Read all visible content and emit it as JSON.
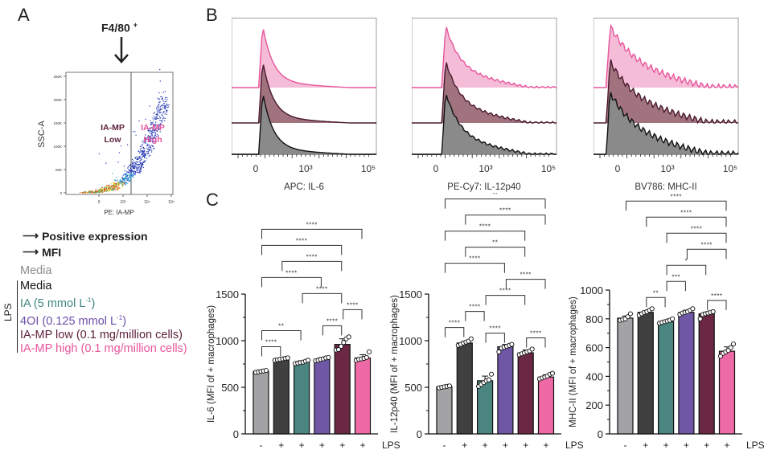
{
  "panels": {
    "a": "A",
    "b": "B",
    "c": "C"
  },
  "panel_a": {
    "gate_title": "F4/80",
    "gate_superscript": "+",
    "ylabel": "SSC-A",
    "xlabel": "PE: IA-MP",
    "yticks": [
      "0",
      "50K",
      "100K",
      "150K",
      "200K",
      "250K"
    ],
    "xticks": [
      "0",
      "10³",
      "10⁴",
      "10⁵"
    ],
    "gate_low": [
      "IA-MP",
      "Low"
    ],
    "gate_high": [
      "IA-MP",
      "High"
    ],
    "arrow_labels": [
      "Positive expression",
      "MFI"
    ]
  },
  "legend": {
    "control": "Media",
    "bracket_label": "LPS",
    "items": [
      {
        "label": "Media",
        "sup": "",
        "tail": "",
        "color": "#111111"
      },
      {
        "label": "IA (5 mmol L",
        "sup": "-1",
        "tail": ")",
        "color": "#3f8580"
      },
      {
        "label": "4OI (0.125 mmol L",
        "sup": "-1",
        "tail": ")",
        "color": "#6a4fa8"
      },
      {
        "label": "IA-MP low (0.1 mg/million cells)",
        "sup": "",
        "tail": "",
        "color": "#5c1f3a"
      },
      {
        "label": "IA-MP high (0.1 mg/million cells)",
        "sup": "",
        "tail": "",
        "color": "#e8559c"
      }
    ],
    "control_color": "#8c8c8c"
  },
  "histograms": [
    {
      "xlabel": "APC: IL-6",
      "xticks": [
        "0",
        "10³",
        "10⁵"
      ]
    },
    {
      "xlabel": "PE-Cy7: IL-12p40",
      "xticks": [
        "0",
        "10³",
        "10⁵"
      ]
    },
    {
      "xlabel": "BV786: MHC-II",
      "xticks": [
        "0",
        "10³",
        "10⁵"
      ]
    }
  ],
  "histogram_colors": {
    "top": "#e8559c",
    "top_fill": "#f4bcd6",
    "mid": "#4a1a2e",
    "mid_fill": "#a0737f",
    "bottom": "#111111",
    "bottom_fill": "#8a8a8a"
  },
  "chart_data": [
    {
      "type": "bar",
      "title": "",
      "ylabel": "IL-6 (MFI of + macrophages)",
      "xlabel": "LPS",
      "categories": [
        "-",
        "+",
        "+",
        "+",
        "+",
        "+"
      ],
      "groups": [
        "Media",
        "LPS Media",
        "LPS IA",
        "LPS 4OI",
        "LPS IA-MP low",
        "LPS IA-MP high"
      ],
      "values": [
        670,
        800,
        770,
        800,
        960,
        815
      ],
      "errors": [
        10,
        8,
        15,
        20,
        60,
        35
      ],
      "points": [
        [
          660,
          665,
          670,
          675,
          680
        ],
        [
          790,
          795,
          800,
          805,
          810,
          815
        ],
        [
          755,
          760,
          765,
          770,
          780,
          790
        ],
        [
          785,
          790,
          800,
          805,
          815,
          820
        ],
        [
          900,
          905,
          940,
          980,
          1020,
          1040
        ],
        [
          790,
          800,
          805,
          810,
          820,
          880
        ]
      ],
      "ylim": [
        0,
        1500
      ],
      "yticks": [
        "0",
        "500",
        "1000",
        "1500"
      ],
      "colors": [
        "#a3a3a6",
        "#404040",
        "#4a8580",
        "#6f57a6",
        "#6a2844",
        "#ee6aa6"
      ],
      "comparisons": [
        {
          "from": 0,
          "to": 1,
          "label": "****"
        },
        {
          "from": 0,
          "to": 2,
          "label": "**"
        },
        {
          "from": 2,
          "to": 4,
          "label": "****"
        },
        {
          "from": 3,
          "to": 4,
          "label": "****"
        },
        {
          "from": 4,
          "to": 5,
          "label": "****"
        },
        {
          "from": 0,
          "to": 3,
          "label": "****"
        },
        {
          "from": 1,
          "to": 4,
          "label": "****"
        },
        {
          "from": 0,
          "to": 4,
          "label": "****"
        },
        {
          "from": 0,
          "to": 5,
          "label": "****"
        }
      ]
    },
    {
      "type": "bar",
      "title": "",
      "ylabel": "IL-12p40 (MFI of + macrophages)",
      "xlabel": "LPS",
      "categories": [
        "-",
        "+",
        "+",
        "+",
        "+",
        "+"
      ],
      "groups": [
        "Media",
        "LPS Media",
        "LPS IA",
        "LPS 4OI",
        "LPS IA-MP low",
        "LPS IA-MP high"
      ],
      "values": [
        505,
        975,
        570,
        935,
        870,
        610
      ],
      "errors": [
        8,
        20,
        50,
        25,
        30,
        25
      ],
      "points": [
        [
          495,
          500,
          505,
          510,
          515
        ],
        [
          950,
          960,
          975,
          985,
          995,
          1020
        ],
        [
          510,
          530,
          550,
          570,
          580,
          640
        ],
        [
          880,
          920,
          930,
          940,
          950,
          960
        ],
        [
          850,
          860,
          870,
          880,
          890,
          910
        ],
        [
          590,
          600,
          610,
          620,
          640,
          650
        ]
      ],
      "ylim": [
        0,
        1500
      ],
      "yticks": [
        "0",
        "500",
        "1000",
        "1500"
      ],
      "colors": [
        "#a3a3a6",
        "#404040",
        "#4a8580",
        "#6f57a6",
        "#6a2844",
        "#ee6aa6"
      ],
      "comparisons": [
        {
          "from": 0,
          "to": 1,
          "label": "****"
        },
        {
          "from": 2,
          "to": 3,
          "label": "****"
        },
        {
          "from": 4,
          "to": 5,
          "label": "****"
        },
        {
          "from": 1,
          "to": 2,
          "label": "****"
        },
        {
          "from": 2,
          "to": 4,
          "label": "****"
        },
        {
          "from": 0,
          "to": 3,
          "label": "****"
        },
        {
          "from": 3,
          "to": 5,
          "label": "****"
        },
        {
          "from": 1,
          "to": 4,
          "label": "**"
        },
        {
          "from": 0,
          "to": 4,
          "label": "****"
        },
        {
          "from": 1,
          "to": 5,
          "label": "****"
        },
        {
          "from": 0,
          "to": 5,
          "label": "**"
        }
      ]
    },
    {
      "type": "bar",
      "title": "",
      "ylabel": "MHC-II (MFI of + macrophages)",
      "xlabel": "LPS",
      "categories": [
        "-",
        "+",
        "+",
        "+",
        "+",
        "+"
      ],
      "groups": [
        "Media",
        "LPS Media",
        "LPS IA",
        "LPS 4OI",
        "LPS IA-MP low",
        "LPS IA-MP high"
      ],
      "values": [
        805,
        845,
        780,
        845,
        835,
        575
      ],
      "errors": [
        15,
        12,
        10,
        15,
        12,
        30
      ],
      "points": [
        [
          790,
          795,
          800,
          815,
          835
        ],
        [
          825,
          835,
          845,
          850,
          860,
          870
        ],
        [
          770,
          775,
          780,
          785,
          790,
          800
        ],
        [
          830,
          840,
          845,
          850,
          860,
          870
        ],
        [
          800,
          830,
          835,
          840,
          845,
          850
        ],
        [
          540,
          560,
          570,
          580,
          600,
          625
        ]
      ],
      "ylim": [
        0,
        1000
      ],
      "yticks": [
        "0",
        "200",
        "400",
        "600",
        "800",
        "1000"
      ],
      "colors": [
        "#a3a3a6",
        "#404040",
        "#4a8580",
        "#6f57a6",
        "#6a2844",
        "#ee6aa6"
      ],
      "comparisons": [
        {
          "from": 1,
          "to": 2,
          "label": "**"
        },
        {
          "from": 2,
          "to": 3,
          "label": "***"
        },
        {
          "from": 4,
          "to": 5,
          "label": "****"
        },
        {
          "from": 2,
          "to": 4,
          "label": "*"
        },
        {
          "from": 3,
          "to": 5,
          "label": "****"
        },
        {
          "from": 2,
          "to": 5,
          "label": "****"
        },
        {
          "from": 1,
          "to": 5,
          "label": "****"
        },
        {
          "from": 0,
          "to": 5,
          "label": "****"
        }
      ]
    }
  ]
}
